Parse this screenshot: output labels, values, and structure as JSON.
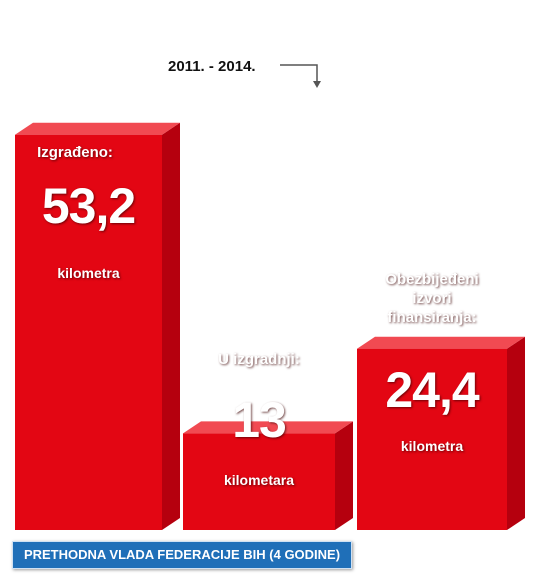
{
  "period": "2011. - 2014.",
  "footer": "PRETHODNA VLADA FEDERACIJE BIH (4 GODINE)",
  "colors": {
    "front": "#e30613",
    "side": "#b5000e",
    "top": "#f14a52",
    "footer": "#1f6fb8"
  },
  "chart_data": {
    "type": "bar",
    "categories": [
      "Izgrađeno:",
      "U izgradnji:",
      "Obezbijeđeni izvori finansiranja:"
    ],
    "values": [
      53.2,
      13,
      24.4
    ],
    "value_labels": [
      "53,2",
      "13",
      "24,4"
    ],
    "units": [
      "kilometra",
      "kilometara",
      "kilometra"
    ],
    "title": "2011. - 2014.",
    "xlabel": "",
    "ylabel": ""
  }
}
